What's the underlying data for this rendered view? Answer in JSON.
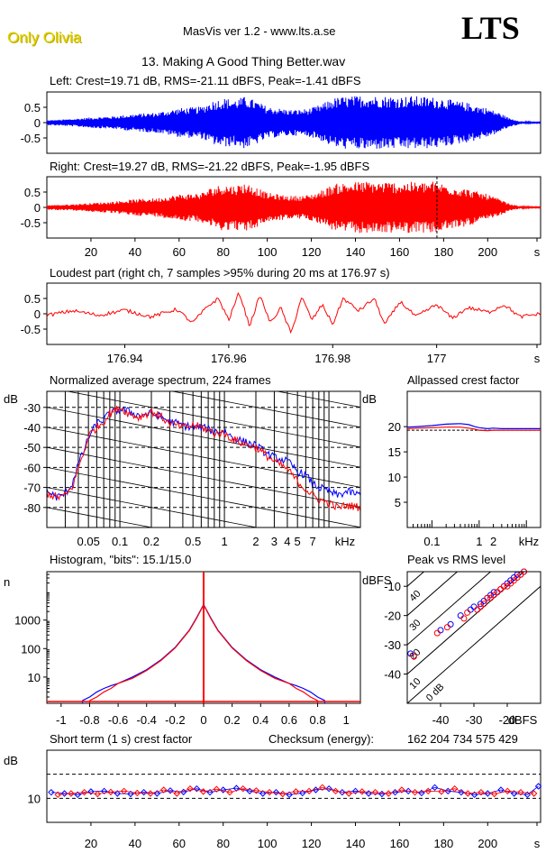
{
  "header": {
    "brand": "Only Olivia",
    "app_title": "MasVis ver 1.2 - www.lts.a.se",
    "logo": "LTS",
    "file_title": "13. Making A Good Thing Better.wav"
  },
  "colors": {
    "left": "#0000ff",
    "right": "#ff0000",
    "axis": "#000000"
  },
  "chart_data": [
    {
      "id": "left-waveform",
      "type": "line",
      "title": "Left: Crest=19.71 dB, RMS=-21.11 dBFS, Peak=-1.41 dBFS",
      "ylim": [
        -1,
        1
      ],
      "yticks": [
        "0.5",
        "0",
        "-0.5"
      ],
      "envelope": {
        "x": [
          0,
          10,
          20,
          30,
          40,
          50,
          60,
          70,
          75,
          80,
          85,
          90,
          95,
          100,
          105,
          110,
          115,
          120,
          125,
          130,
          135,
          140,
          145,
          150,
          155,
          160,
          165,
          170,
          175,
          180,
          185,
          190,
          195,
          200,
          205,
          210,
          215,
          220
        ],
        "values": [
          0.08,
          0.12,
          0.18,
          0.22,
          0.3,
          0.35,
          0.5,
          0.55,
          0.75,
          0.85,
          0.8,
          0.9,
          0.75,
          0.55,
          0.5,
          0.45,
          0.45,
          0.5,
          0.65,
          0.85,
          0.9,
          0.92,
          0.95,
          0.92,
          0.92,
          0.9,
          0.92,
          0.9,
          0.88,
          0.85,
          0.75,
          0.7,
          0.6,
          0.5,
          0.35,
          0.15,
          0.05,
          0.02
        ]
      }
    },
    {
      "id": "right-waveform",
      "type": "line",
      "title": "Right: Crest=19.27 dB, RMS=-21.22 dBFS, Peak=-1.95 dBFS",
      "ylim": [
        -1,
        1
      ],
      "yticks": [
        "0.5",
        "0",
        "-0.5"
      ],
      "xticks": [
        "20",
        "40",
        "60",
        "80",
        "100",
        "120",
        "140",
        "160",
        "180",
        "200",
        "s"
      ],
      "marker_x": 176.97,
      "envelope": {
        "x": [
          0,
          10,
          20,
          30,
          40,
          50,
          60,
          70,
          75,
          80,
          85,
          90,
          95,
          100,
          105,
          110,
          115,
          120,
          125,
          130,
          135,
          140,
          145,
          150,
          155,
          160,
          165,
          170,
          175,
          180,
          185,
          190,
          195,
          200,
          205,
          210,
          215,
          220
        ],
        "values": [
          0.08,
          0.1,
          0.15,
          0.2,
          0.28,
          0.32,
          0.45,
          0.5,
          0.7,
          0.8,
          0.75,
          0.85,
          0.7,
          0.5,
          0.45,
          0.4,
          0.4,
          0.45,
          0.6,
          0.8,
          0.85,
          0.88,
          0.9,
          0.88,
          0.88,
          0.86,
          0.88,
          0.86,
          0.9,
          0.82,
          0.72,
          0.65,
          0.55,
          0.45,
          0.3,
          0.12,
          0.04,
          0.02
        ]
      }
    },
    {
      "id": "loudest-part",
      "type": "line",
      "title": "Loudest part (right ch, 7 samples >95% during 20 ms at 176.97 s)",
      "xlim": [
        176.925,
        177.02
      ],
      "ylim": [
        -1,
        1
      ],
      "yticks": [
        "0.5",
        "0",
        "-0.5"
      ],
      "xticks": [
        "176.94",
        "176.96",
        "176.98",
        "177",
        "s"
      ],
      "x": [
        176.925,
        176.93,
        176.935,
        176.94,
        176.945,
        176.95,
        176.953,
        176.956,
        176.958,
        176.96,
        176.962,
        176.964,
        176.966,
        176.968,
        176.97,
        176.972,
        176.974,
        176.976,
        176.978,
        176.98,
        176.982,
        176.985,
        176.988,
        176.99,
        176.993,
        176.996,
        177.0,
        177.003,
        177.006,
        177.01,
        177.013,
        177.016,
        177.02
      ],
      "values": [
        -0.05,
        0.1,
        -0.05,
        0.12,
        -0.1,
        0.15,
        -0.3,
        0.25,
        0.5,
        -0.2,
        0.7,
        -0.4,
        0.6,
        -0.3,
        0.2,
        -0.65,
        0.55,
        -0.2,
        0.3,
        -0.35,
        0.5,
        0.1,
        0.5,
        -0.35,
        0.4,
        -0.1,
        0.3,
        -0.15,
        0.2,
        0.05,
        0.3,
        -0.1,
        0.0
      ]
    },
    {
      "id": "average-spectrum",
      "type": "line",
      "title": "Normalized average spectrum, 224 frames",
      "ylabel": "dB",
      "xlabel": "kHz",
      "xscale": "log",
      "xlim": [
        0.02,
        20
      ],
      "ylim": [
        -90,
        -22
      ],
      "yticks": [
        "-30",
        "-40",
        "-50",
        "-60",
        "-70",
        "-80"
      ],
      "xticks": [
        "0.05",
        "0.1",
        "0.2",
        "0.5",
        "1",
        "2",
        "3",
        "4",
        "5",
        "7",
        "kHz"
      ],
      "series": [
        {
          "name": "left",
          "x": [
            0.02,
            0.025,
            0.03,
            0.035,
            0.04,
            0.045,
            0.05,
            0.06,
            0.07,
            0.08,
            0.1,
            0.12,
            0.15,
            0.2,
            0.25,
            0.3,
            0.4,
            0.5,
            0.6,
            0.8,
            1.0,
            1.2,
            1.5,
            2.0,
            2.5,
            3.0,
            4.0,
            5.0,
            6.0,
            7.0,
            8.0,
            10,
            12,
            15,
            20
          ],
          "values": [
            -72,
            -75,
            -73,
            -68,
            -58,
            -52,
            -45,
            -38,
            -36,
            -33,
            -31,
            -32,
            -34,
            -33,
            -35,
            -37,
            -39,
            -40,
            -40,
            -42,
            -42,
            -45,
            -47,
            -49,
            -53,
            -55,
            -57,
            -62,
            -64,
            -68,
            -70,
            -72,
            -74,
            -72,
            -74
          ]
        },
        {
          "name": "right",
          "x": [
            0.02,
            0.025,
            0.03,
            0.035,
            0.04,
            0.045,
            0.05,
            0.06,
            0.07,
            0.08,
            0.1,
            0.12,
            0.15,
            0.2,
            0.25,
            0.3,
            0.4,
            0.5,
            0.6,
            0.8,
            1.0,
            1.2,
            1.5,
            2.0,
            2.5,
            3.0,
            4.0,
            5.0,
            6.0,
            7.0,
            8.0,
            10,
            12,
            15,
            20
          ],
          "values": [
            -73,
            -75,
            -74,
            -70,
            -60,
            -53,
            -44,
            -40,
            -37,
            -33,
            -30,
            -33,
            -35,
            -32,
            -35,
            -38,
            -40,
            -39,
            -40,
            -43,
            -43,
            -46,
            -48,
            -50,
            -54,
            -57,
            -61,
            -67,
            -71,
            -74,
            -76,
            -78,
            -80,
            -79,
            -80
          ]
        }
      ]
    },
    {
      "id": "allpassed-crest",
      "type": "line",
      "title": "Allpassed crest factor",
      "ylabel": "dB",
      "xlabel": "kHz",
      "xscale": "log",
      "xlim": [
        0.03,
        20
      ],
      "ylim": [
        0,
        27
      ],
      "yticks": [
        "20",
        "15",
        "10",
        "5"
      ],
      "xticks": [
        "0.1",
        "1",
        "2",
        "kHz"
      ],
      "series": [
        {
          "name": "left",
          "x": [
            0.03,
            0.05,
            0.1,
            0.2,
            0.4,
            0.6,
            0.8,
            1,
            1.5,
            2,
            3,
            5,
            10,
            20
          ],
          "values": [
            19.9,
            20.0,
            20.2,
            20.5,
            20.6,
            20.4,
            20.0,
            19.8,
            19.6,
            19.7,
            19.6,
            19.6,
            19.6,
            19.6
          ]
        },
        {
          "name": "right",
          "x": [
            0.03,
            0.05,
            0.1,
            0.2,
            0.4,
            0.6,
            0.8,
            1,
            1.5,
            2,
            3,
            5,
            10,
            20
          ],
          "values": [
            19.6,
            19.7,
            19.8,
            19.9,
            19.9,
            19.7,
            19.5,
            19.3,
            19.2,
            19.3,
            19.3,
            19.3,
            19.3,
            19.3
          ]
        }
      ],
      "reference": 19.3
    },
    {
      "id": "histogram",
      "type": "line",
      "title": "Histogram, \"bits\": 15.1/15.0",
      "ylabel": "n",
      "yscale": "log",
      "xlim": [
        -1.1,
        1.1
      ],
      "ylim": [
        1.2,
        50000
      ],
      "yticks": [
        "1000",
        "100",
        "10"
      ],
      "xticks": [
        "-1",
        "-0.8",
        "-0.6",
        "-0.4",
        "-0.2",
        "0",
        "0.2",
        "0.4",
        "0.6",
        "0.8",
        "1"
      ],
      "series": [
        {
          "name": "left",
          "x": [
            -0.85,
            -0.8,
            -0.75,
            -0.7,
            -0.65,
            -0.6,
            -0.5,
            -0.4,
            -0.3,
            -0.2,
            -0.1,
            -0.05,
            0,
            0.05,
            0.1,
            0.2,
            0.3,
            0.4,
            0.5,
            0.6,
            0.65,
            0.7,
            0.75,
            0.8,
            0.85
          ],
          "values": [
            1.5,
            2,
            3,
            4,
            5,
            6,
            10,
            18,
            40,
            110,
            450,
            1200,
            3500,
            1200,
            450,
            110,
            40,
            18,
            10,
            6,
            5,
            4,
            3,
            2,
            1.5
          ]
        },
        {
          "name": "right",
          "x": [
            -0.8,
            -0.75,
            -0.7,
            -0.65,
            -0.6,
            -0.5,
            -0.4,
            -0.3,
            -0.2,
            -0.1,
            -0.05,
            0,
            0.05,
            0.1,
            0.2,
            0.3,
            0.4,
            0.5,
            0.6,
            0.65,
            0.7,
            0.75,
            0.8
          ],
          "values": [
            1.5,
            2,
            3,
            4,
            6,
            9,
            17,
            38,
            105,
            430,
            1150,
            3400,
            1150,
            430,
            105,
            38,
            17,
            9,
            6,
            4,
            3,
            2,
            1.5
          ]
        }
      ]
    },
    {
      "id": "peak-vs-rms",
      "type": "scatter",
      "title": "Peak vs RMS level",
      "ylabel": "dBFS",
      "xlabel": "dBFS",
      "xlim": [
        -50,
        -10
      ],
      "ylim": [
        -50,
        -5
      ],
      "yticks": [
        "-10",
        "-20",
        "-30",
        "-40"
      ],
      "xticks": [
        "-40",
        "-30",
        "-20",
        "dBFS"
      ],
      "diagonal_labels": [
        "40",
        "30",
        "20",
        "10",
        "0 dB"
      ],
      "series": [
        {
          "name": "left",
          "x": [
            -49,
            -40,
            -37,
            -34,
            -31,
            -30,
            -28,
            -27,
            -26,
            -25,
            -24,
            -23,
            -22,
            -21,
            -20,
            -19,
            -18,
            -17,
            -16,
            -15
          ],
          "values": [
            -33,
            -25,
            -23,
            -20,
            -18,
            -17,
            -16,
            -15,
            -14,
            -13,
            -12,
            -12,
            -11,
            -10,
            -9,
            -8,
            -7,
            -6,
            -6,
            -5
          ]
        },
        {
          "name": "right",
          "x": [
            -48,
            -41,
            -38,
            -33,
            -32,
            -29,
            -28,
            -27,
            -26,
            -25,
            -24,
            -23,
            -22,
            -21,
            -20,
            -19,
            -18,
            -17,
            -16,
            -15
          ],
          "values": [
            -34,
            -26,
            -24,
            -21,
            -19,
            -18,
            -17,
            -16,
            -14,
            -14,
            -13,
            -12,
            -11,
            -10,
            -10,
            -9,
            -8,
            -7,
            -6,
            -5
          ]
        }
      ]
    },
    {
      "id": "short-term-crest",
      "type": "scatter",
      "title": "Short term (1 s) crest factor",
      "checksum_label": "Checksum (energy):",
      "checksum_value": "162 204 734 575 429",
      "ylabel": "dB",
      "xlim": [
        0,
        224
      ],
      "ylim": [
        0,
        30
      ],
      "yticks": [
        "10"
      ],
      "xticks": [
        "20",
        "40",
        "60",
        "80",
        "100",
        "120",
        "140",
        "160",
        "180",
        "200",
        "s"
      ],
      "series": [
        {
          "name": "left",
          "x": [
            2,
            8,
            14,
            20,
            26,
            32,
            38,
            44,
            50,
            56,
            62,
            68,
            74,
            80,
            86,
            92,
            98,
            104,
            110,
            116,
            122,
            128,
            134,
            140,
            146,
            152,
            158,
            164,
            170,
            176,
            182,
            188,
            194,
            200,
            206,
            212,
            218,
            223
          ],
          "values": [
            12.5,
            12.0,
            11.5,
            12.8,
            13.0,
            12.0,
            11.8,
            12.5,
            12.0,
            13.2,
            12.6,
            14.0,
            12.5,
            13.5,
            14.2,
            13.0,
            12.0,
            12.5,
            11.5,
            12.2,
            13.5,
            14.0,
            12.5,
            13.0,
            12.0,
            11.8,
            12.5,
            13.0,
            12.2,
            14.5,
            13.0,
            12.5,
            11.5,
            12.0,
            13.5,
            12.0,
            11.5,
            15.0
          ]
        },
        {
          "name": "right",
          "x": [
            5,
            11,
            17,
            23,
            29,
            35,
            41,
            47,
            53,
            59,
            65,
            71,
            77,
            83,
            89,
            95,
            101,
            107,
            113,
            119,
            125,
            131,
            137,
            143,
            149,
            155,
            161,
            167,
            173,
            179,
            185,
            191,
            197,
            203,
            209,
            215,
            221
          ],
          "values": [
            11.5,
            12.0,
            12.5,
            11.8,
            12.6,
            13.0,
            12.2,
            12.0,
            13.5,
            12.0,
            14.0,
            12.8,
            13.8,
            12.5,
            14.0,
            13.2,
            12.5,
            11.8,
            12.8,
            13.0,
            14.5,
            13.0,
            12.0,
            12.8,
            12.5,
            12.0,
            13.5,
            12.5,
            13.0,
            12.8,
            14.0,
            12.0,
            12.5,
            11.8,
            13.0,
            12.5,
            12.0
          ]
        }
      ]
    }
  ]
}
